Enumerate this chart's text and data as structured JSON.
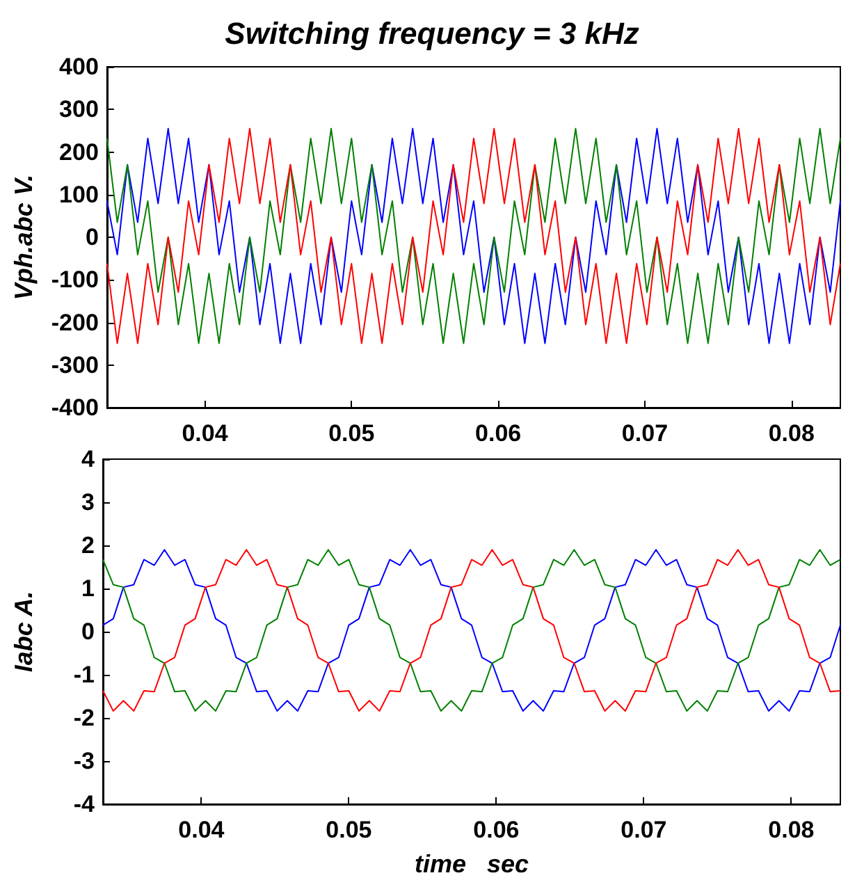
{
  "chart_data": [
    {
      "type": "line",
      "title": "Switching frequency = 3 kHz",
      "ylabel": "Vph.abc V.",
      "x": [
        0.03333,
        0.03403,
        0.03472,
        0.03542,
        0.03611,
        0.03681,
        0.0375,
        0.03819,
        0.03889,
        0.03958,
        0.04028,
        0.04097,
        0.04167,
        0.04236,
        0.04306,
        0.04375,
        0.04444,
        0.04514,
        0.04583,
        0.04653,
        0.04722,
        0.04792,
        0.04861,
        0.04931,
        0.05,
        0.05069,
        0.05139,
        0.05208,
        0.05278,
        0.05347,
        0.05417,
        0.05486,
        0.05556,
        0.05625,
        0.05694,
        0.05764,
        0.05833,
        0.05903,
        0.05972,
        0.06042,
        0.06111,
        0.06181,
        0.0625,
        0.06319,
        0.06389,
        0.06458,
        0.06528,
        0.06597,
        0.06667,
        0.06736,
        0.06806,
        0.06875,
        0.06944,
        0.07014,
        0.07083,
        0.07153,
        0.07222,
        0.07292,
        0.07361,
        0.07431,
        0.075,
        0.07569,
        0.07639,
        0.07708,
        0.07778,
        0.07847,
        0.07917,
        0.07986,
        0.08056,
        0.08125,
        0.08194,
        0.08264,
        0.08333
      ],
      "series": [
        {
          "color": "#0000ff",
          "values": [
            85,
            -41,
            170,
            35,
            232,
            79,
            255,
            79,
            232,
            35,
            170,
            -41,
            85,
            -129,
            0,
            -205,
            -62,
            -249,
            -85,
            -249,
            -62,
            -205,
            0,
            -129,
            85,
            -41,
            170,
            35,
            232,
            79,
            255,
            79,
            232,
            35,
            170,
            -41,
            85,
            -129,
            0,
            -205,
            -62,
            -249,
            -85,
            -249,
            -62,
            -205,
            0,
            -129,
            85,
            -41,
            170,
            35,
            232,
            79,
            255,
            79,
            232,
            35,
            170,
            -41,
            85,
            -129,
            0,
            -205,
            -62,
            -249,
            -85,
            -249,
            -62,
            -205,
            0,
            -129,
            85
          ]
        },
        {
          "color": "#008000",
          "values": [
            232,
            35,
            170,
            -41,
            85,
            -129,
            0,
            -205,
            -62,
            -249,
            -85,
            -249,
            -62,
            -205,
            0,
            -129,
            85,
            -41,
            170,
            35,
            232,
            79,
            255,
            79,
            232,
            35,
            170,
            -41,
            85,
            -129,
            0,
            -205,
            -62,
            -249,
            -85,
            -249,
            -62,
            -205,
            0,
            -129,
            85,
            -41,
            170,
            35,
            232,
            79,
            255,
            79,
            232,
            35,
            170,
            -41,
            85,
            -129,
            0,
            -205,
            -62,
            -249,
            -85,
            -249,
            -62,
            -205,
            0,
            -129,
            85,
            -41,
            170,
            35,
            232,
            79,
            255,
            79,
            232
          ]
        },
        {
          "color": "#ff0000",
          "values": [
            -62,
            -249,
            -85,
            -249,
            -62,
            -205,
            0,
            -129,
            85,
            -41,
            170,
            35,
            232,
            79,
            255,
            79,
            232,
            35,
            170,
            -41,
            85,
            -129,
            0,
            -205,
            -62,
            -249,
            -85,
            -249,
            -62,
            -205,
            0,
            -129,
            85,
            -41,
            170,
            35,
            232,
            79,
            255,
            79,
            232,
            35,
            170,
            -41,
            85,
            -129,
            0,
            -205,
            -62,
            -249,
            -85,
            -249,
            -62,
            -205,
            0,
            -129,
            85,
            -41,
            170,
            35,
            232,
            79,
            255,
            79,
            232,
            35,
            170,
            -41,
            85,
            -129,
            0,
            -205,
            -62
          ]
        }
      ],
      "xlim": [
        0.03333,
        0.08333
      ],
      "xticks": [
        0.04,
        0.05,
        0.06,
        0.07,
        0.08
      ],
      "ylim": [
        -400,
        400
      ],
      "yticks": [
        -400,
        -300,
        -200,
        -100,
        0,
        100,
        200,
        300,
        400
      ],
      "grid": false
    },
    {
      "type": "line",
      "ylabel": "Iabc A.",
      "xlabel": "time   sec",
      "x": [
        0.03333,
        0.03403,
        0.03472,
        0.03542,
        0.03611,
        0.03681,
        0.0375,
        0.03819,
        0.03889,
        0.03958,
        0.04028,
        0.04097,
        0.04167,
        0.04236,
        0.04306,
        0.04375,
        0.04444,
        0.04514,
        0.04583,
        0.04653,
        0.04722,
        0.04792,
        0.04861,
        0.04931,
        0.05,
        0.05069,
        0.05139,
        0.05208,
        0.05278,
        0.05347,
        0.05417,
        0.05486,
        0.05556,
        0.05625,
        0.05694,
        0.05764,
        0.05833,
        0.05903,
        0.05972,
        0.06042,
        0.06111,
        0.06181,
        0.0625,
        0.06319,
        0.06389,
        0.06458,
        0.06528,
        0.06597,
        0.06667,
        0.06736,
        0.06806,
        0.06875,
        0.06944,
        0.07014,
        0.07083,
        0.07153,
        0.07222,
        0.07292,
        0.07361,
        0.07431,
        0.075,
        0.07569,
        0.07639,
        0.07708,
        0.07778,
        0.07847,
        0.07917,
        0.07986,
        0.08056,
        0.08125,
        0.08194,
        0.08264,
        0.08333
      ],
      "series": [
        {
          "color": "#0000ff",
          "values": [
            0.15,
            0.3,
            1.03,
            1.09,
            1.67,
            1.54,
            1.9,
            1.54,
            1.67,
            1.09,
            1.03,
            0.3,
            0.15,
            -0.6,
            -0.73,
            -1.39,
            -1.37,
            -1.84,
            -1.6,
            -1.84,
            -1.37,
            -1.39,
            -0.73,
            -0.6,
            0.15,
            0.3,
            1.03,
            1.09,
            1.67,
            1.54,
            1.9,
            1.54,
            1.67,
            1.09,
            1.03,
            0.3,
            0.15,
            -0.6,
            -0.73,
            -1.39,
            -1.37,
            -1.84,
            -1.6,
            -1.84,
            -1.37,
            -1.39,
            -0.73,
            -0.6,
            0.15,
            0.3,
            1.03,
            1.09,
            1.67,
            1.54,
            1.9,
            1.54,
            1.67,
            1.09,
            1.03,
            0.3,
            0.15,
            -0.6,
            -0.73,
            -1.39,
            -1.37,
            -1.84,
            -1.6,
            -1.84,
            -1.37,
            -1.39,
            -0.73,
            -0.6,
            0.15
          ]
        },
        {
          "color": "#008000",
          "values": [
            1.67,
            1.09,
            1.03,
            0.3,
            0.15,
            -0.6,
            -0.73,
            -1.39,
            -1.37,
            -1.84,
            -1.6,
            -1.84,
            -1.37,
            -1.39,
            -0.73,
            -0.6,
            0.15,
            0.3,
            1.03,
            1.09,
            1.67,
            1.54,
            1.9,
            1.54,
            1.67,
            1.09,
            1.03,
            0.3,
            0.15,
            -0.6,
            -0.73,
            -1.39,
            -1.37,
            -1.84,
            -1.6,
            -1.84,
            -1.37,
            -1.39,
            -0.73,
            -0.6,
            0.15,
            0.3,
            1.03,
            1.09,
            1.67,
            1.54,
            1.9,
            1.54,
            1.67,
            1.09,
            1.03,
            0.3,
            0.15,
            -0.6,
            -0.73,
            -1.39,
            -1.37,
            -1.84,
            -1.6,
            -1.84,
            -1.37,
            -1.39,
            -0.73,
            -0.6,
            0.15,
            0.3,
            1.03,
            1.09,
            1.67,
            1.54,
            1.9,
            1.54,
            1.67
          ]
        },
        {
          "color": "#ff0000",
          "values": [
            -1.37,
            -1.84,
            -1.6,
            -1.84,
            -1.37,
            -1.39,
            -0.73,
            -0.6,
            0.15,
            0.3,
            1.03,
            1.09,
            1.67,
            1.54,
            1.9,
            1.54,
            1.67,
            1.09,
            1.03,
            0.3,
            0.15,
            -0.6,
            -0.73,
            -1.39,
            -1.37,
            -1.84,
            -1.6,
            -1.84,
            -1.37,
            -1.39,
            -0.73,
            -0.6,
            0.15,
            0.3,
            1.03,
            1.09,
            1.67,
            1.54,
            1.9,
            1.54,
            1.67,
            1.09,
            1.03,
            0.3,
            0.15,
            -0.6,
            -0.73,
            -1.39,
            -1.37,
            -1.84,
            -1.6,
            -1.84,
            -1.37,
            -1.39,
            -0.73,
            -0.6,
            0.15,
            0.3,
            1.03,
            1.09,
            1.67,
            1.54,
            1.9,
            1.54,
            1.67,
            1.09,
            1.03,
            0.3,
            0.15,
            -0.6,
            -0.73,
            -1.39,
            -1.37
          ]
        }
      ],
      "xlim": [
        0.03333,
        0.08333
      ],
      "xticks": [
        0.04,
        0.05,
        0.06,
        0.07,
        0.08
      ],
      "ylim": [
        -4,
        4
      ],
      "yticks": [
        -4,
        -3,
        -2,
        -1,
        0,
        1,
        2,
        3,
        4
      ],
      "grid": false
    }
  ]
}
